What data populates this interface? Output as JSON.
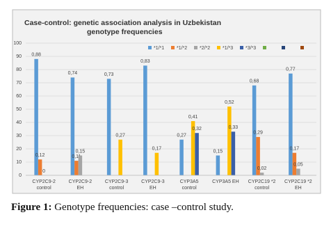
{
  "chart_data": {
    "type": "bar",
    "title": "Case-control: genetic association analysis in Uzbekistan",
    "subtitle": "genotype  frequencies",
    "categories": [
      "CYP2C9-2 control",
      "CYP2C9-2 EH",
      "CYP2C9-3 control",
      "CYP2C9-3 EH",
      "CYP3A5 control",
      "CYP3A5 EH",
      "CYP2C19 *2 control",
      "CYP2C19 *2 EH"
    ],
    "series": [
      {
        "name": "*1/*1",
        "color": "#5b9bd5",
        "values": [
          88,
          74,
          73,
          83,
          27,
          15,
          68,
          77
        ],
        "value_labels": [
          "0,88",
          "0,74",
          "0,73",
          "0,83",
          "0,27",
          "0,15",
          "0,68",
          "0,77"
        ]
      },
      {
        "name": "*1/*2",
        "color": "#ed7d31",
        "values": [
          12,
          11,
          null,
          null,
          null,
          null,
          29,
          17
        ],
        "value_labels": [
          "0,12",
          "0,11",
          null,
          null,
          null,
          null,
          "0,29",
          "0,17"
        ]
      },
      {
        "name": "*2/*2",
        "color": "#a5a5a5",
        "values": [
          0,
          15,
          null,
          null,
          null,
          null,
          2,
          5
        ],
        "value_labels": [
          "0",
          "0,15",
          null,
          null,
          null,
          null,
          "0,02",
          "0,05"
        ]
      },
      {
        "name": "*1/*3",
        "color": "#ffc000",
        "values": [
          null,
          null,
          27,
          17,
          41,
          52,
          null,
          null
        ],
        "value_labels": [
          null,
          null,
          "0,27",
          "0,17",
          "0,41",
          "0,52",
          null,
          null
        ]
      },
      {
        "name": "*3/*3",
        "color": "#3a5fa8",
        "values": [
          null,
          null,
          null,
          null,
          32,
          33,
          null,
          null
        ],
        "value_labels": [
          null,
          null,
          null,
          null,
          "0,32",
          "0,33",
          null,
          null
        ]
      }
    ],
    "ylim": [
      0,
      100
    ],
    "yticks": [
      0,
      10,
      20,
      30,
      40,
      50,
      60,
      70,
      80,
      90,
      100
    ],
    "grid": true,
    "caption": {
      "label": "Figure 1:",
      "text": "Genotype frequencies: case –control study."
    }
  }
}
